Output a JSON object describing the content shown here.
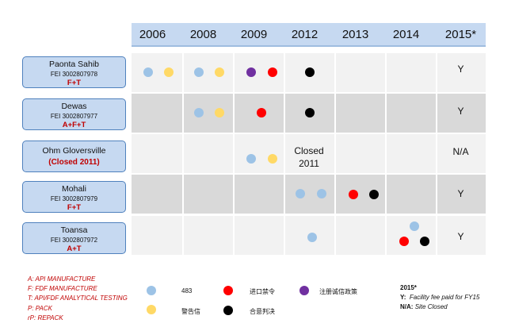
{
  "years": [
    "2006",
    "2008",
    "2009",
    "2012",
    "2013",
    "2014",
    "2015*"
  ],
  "colors": {
    "p483": "#9dc3e6",
    "warning": "#ffd966",
    "import_ban": "#ff0000",
    "consent_decree": "#000000",
    "integrity_policy": "#7030a0"
  },
  "sites": [
    {
      "name": "Paonta Sahib",
      "fei": "FEI 3002807978",
      "code": "F+T",
      "y2015": "Y"
    },
    {
      "name": "Dewas",
      "fei": "FEI 3002807977",
      "code": "A+F+T",
      "y2015": "Y"
    },
    {
      "name": "Ohm Gloversville",
      "note": "(Closed 2011)",
      "closed_line1": "Closed",
      "closed_line2": "2011",
      "y2015": "N/A"
    },
    {
      "name": "Mohali",
      "fei": "FEI 3002807979",
      "code": "F+T",
      "y2015": "Y"
    },
    {
      "name": "Toansa",
      "fei": "FEI 3002807972",
      "code": "A+T",
      "y2015": "Y"
    }
  ],
  "events": [
    {
      "site": "Paonta Sahib",
      "year": "2006",
      "types": [
        "483",
        "warning"
      ]
    },
    {
      "site": "Paonta Sahib",
      "year": "2008",
      "types": [
        "483",
        "warning"
      ]
    },
    {
      "site": "Paonta Sahib",
      "year": "2009",
      "types": [
        "integrity_policy",
        "import_ban"
      ]
    },
    {
      "site": "Paonta Sahib",
      "year": "2012",
      "types": [
        "consent_decree"
      ]
    },
    {
      "site": "Dewas",
      "year": "2008",
      "types": [
        "483",
        "warning"
      ]
    },
    {
      "site": "Dewas",
      "year": "2009",
      "types": [
        "import_ban"
      ]
    },
    {
      "site": "Dewas",
      "year": "2012",
      "types": [
        "consent_decree"
      ]
    },
    {
      "site": "Ohm Gloversville",
      "year": "2009",
      "types": [
        "483",
        "warning"
      ]
    },
    {
      "site": "Mohali",
      "year": "2012",
      "types": [
        "483",
        "483"
      ]
    },
    {
      "site": "Mohali",
      "year": "2013",
      "types": [
        "import_ban",
        "consent_decree"
      ]
    },
    {
      "site": "Toansa",
      "year": "2012",
      "types": [
        "483"
      ]
    },
    {
      "site": "Toansa",
      "year": "2014",
      "types": [
        "483",
        "import_ban",
        "consent_decree"
      ]
    }
  ],
  "legend_codes": [
    "A: API MANUFACTURE",
    "F: FDF MANUFACTURE",
    "T: API/FDF ANALYTICAL TESTING",
    "P: PACK",
    "rP: REPACK"
  ],
  "legend_items": {
    "p483": "483",
    "warning": "警告信",
    "import_ban": "进口禁令",
    "consent_decree": "合意判决",
    "integrity_policy": "注册诚信政策"
  },
  "notes": {
    "title": "2015*",
    "y_key": "Y:",
    "y_text": "Facility fee paid for FY15",
    "na_key": "N/A:",
    "na_text": "Site Closed"
  }
}
